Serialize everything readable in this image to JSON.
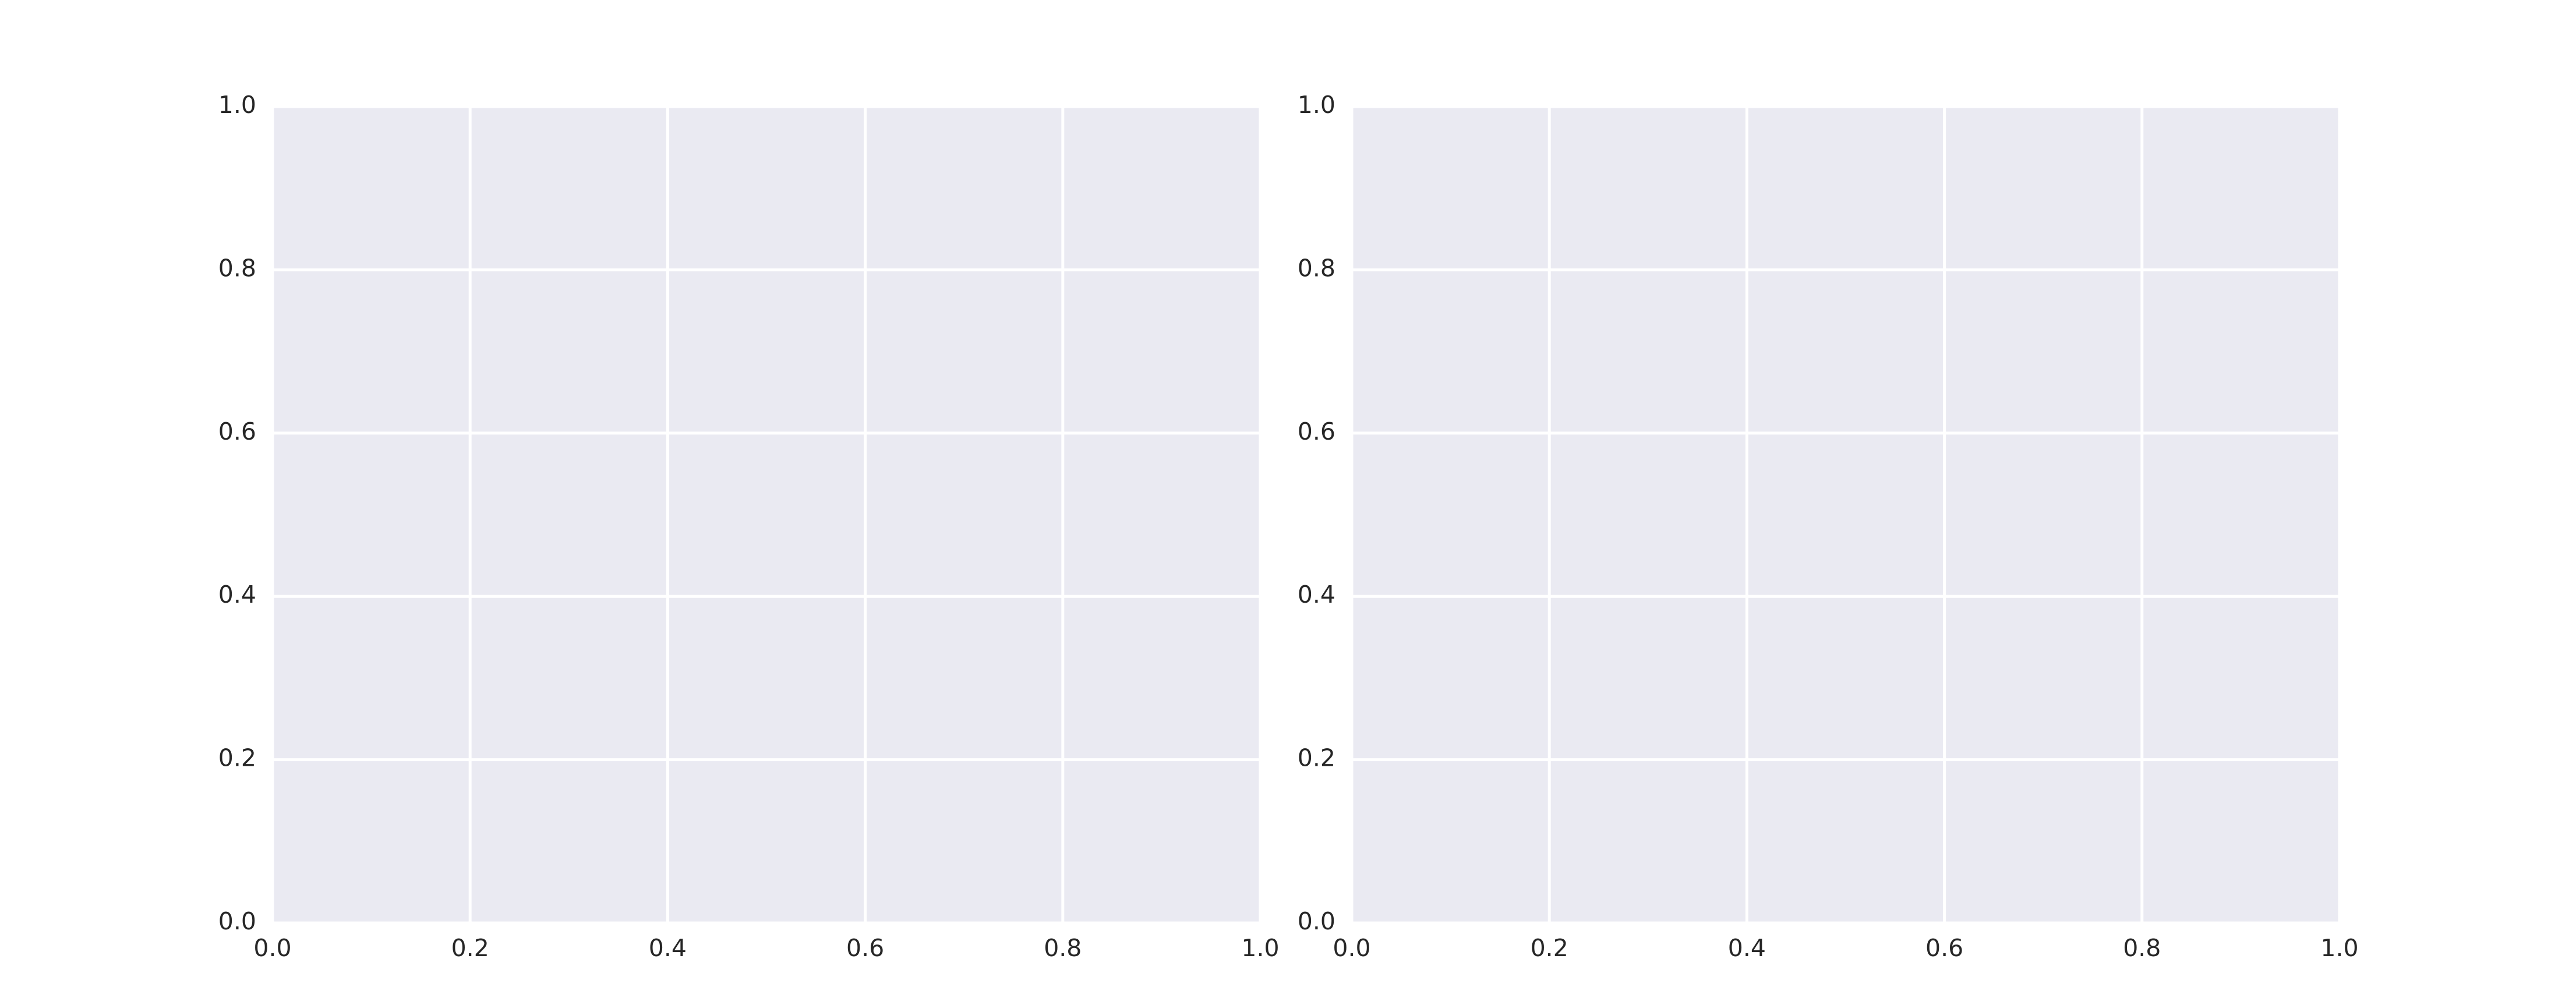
{
  "chart_data": [
    {
      "type": "scatter",
      "xlim": [
        0,
        1
      ],
      "xticks": [
        {
          "value": 0,
          "label": "0.0"
        },
        0.2,
        0.4,
        0.6,
        0.8,
        {
          "value": 1,
          "label": "1.0"
        }
      ],
      "ylim": [
        0,
        1
      ],
      "yticks": [
        {
          "value": 0,
          "label": "0.0"
        },
        0.2,
        0.4,
        0.6,
        0.8,
        {
          "value": 1,
          "label": "1.0"
        }
      ],
      "grid": true
    },
    {
      "type": "scatter",
      "xlim": [
        0,
        1
      ],
      "xticks": [
        {
          "value": 0,
          "label": "0.0"
        },
        0.2,
        0.4,
        0.6,
        0.8,
        {
          "value": 1,
          "label": "1.0"
        }
      ],
      "ylim": [
        0,
        1
      ],
      "yticks": [
        {
          "value": 0,
          "label": "0.0"
        },
        0.2,
        0.4,
        0.6,
        0.8,
        {
          "value": 1,
          "label": "1.0"
        }
      ],
      "grid": true
    }
  ]
}
